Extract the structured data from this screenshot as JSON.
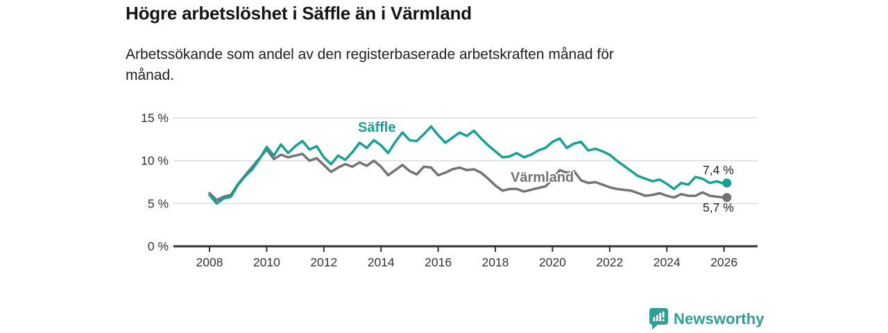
{
  "header": {
    "title": "Högre arbetslöshet i Säffle än i Värmland",
    "subtitle": "Arbetssökande som andel av den registerbaserade arbetskraften månad för månad."
  },
  "chart_data": {
    "type": "line",
    "title": "Högre arbetslöshet i Säffle än i Värmland",
    "xlabel": "",
    "ylabel": "",
    "grid": "horizontal",
    "legend_position": "inline-labels",
    "xlim": [
      2007.5,
      2027.2
    ],
    "ylim": [
      0,
      15.5
    ],
    "x_ticks": [
      2008,
      2010,
      2012,
      2014,
      2016,
      2018,
      2020,
      2022,
      2024,
      2026
    ],
    "y_ticks": [
      {
        "value": 0,
        "label": "0 %"
      },
      {
        "value": 5,
        "label": "5 %"
      },
      {
        "value": 10,
        "label": "10 %"
      },
      {
        "value": 15,
        "label": "15 %"
      }
    ],
    "x": [
      2008.0,
      2008.25,
      2008.5,
      2008.75,
      2009.0,
      2009.25,
      2009.5,
      2009.75,
      2010.0,
      2010.25,
      2010.5,
      2010.75,
      2011.0,
      2011.25,
      2011.5,
      2011.75,
      2012.0,
      2012.25,
      2012.5,
      2012.75,
      2013.0,
      2013.25,
      2013.5,
      2013.75,
      2014.0,
      2014.25,
      2014.5,
      2014.75,
      2015.0,
      2015.25,
      2015.5,
      2015.75,
      2016.0,
      2016.25,
      2016.5,
      2016.75,
      2017.0,
      2017.25,
      2017.5,
      2017.75,
      2018.0,
      2018.25,
      2018.5,
      2018.75,
      2019.0,
      2019.25,
      2019.5,
      2019.75,
      2020.0,
      2020.25,
      2020.5,
      2020.75,
      2021.0,
      2021.25,
      2021.5,
      2021.75,
      2022.0,
      2022.25,
      2022.5,
      2022.75,
      2023.0,
      2023.25,
      2023.5,
      2023.75,
      2024.0,
      2024.25,
      2024.5,
      2024.75,
      2025.0,
      2025.25,
      2025.5,
      2025.75,
      2026.0,
      2026.1
    ],
    "series": [
      {
        "name": "Säffle",
        "color": "#16a194",
        "end_label": "7,4 %",
        "end_value": 7.4,
        "values": [
          6.0,
          5.0,
          5.6,
          5.8,
          7.2,
          8.2,
          9.0,
          10.2,
          11.6,
          10.6,
          11.9,
          10.9,
          11.7,
          12.3,
          11.3,
          11.7,
          10.4,
          9.6,
          10.6,
          10.1,
          11.0,
          12.1,
          11.5,
          12.4,
          11.8,
          10.9,
          12.2,
          13.3,
          12.4,
          12.3,
          13.1,
          14.0,
          13.0,
          12.1,
          12.7,
          13.3,
          12.9,
          13.5,
          12.6,
          11.8,
          11.1,
          10.4,
          10.5,
          10.9,
          10.4,
          10.7,
          11.2,
          11.5,
          12.2,
          12.6,
          11.5,
          12.0,
          12.2,
          11.2,
          11.4,
          11.1,
          10.7,
          10.0,
          9.4,
          8.8,
          8.2,
          7.9,
          7.6,
          7.8,
          7.3,
          6.7,
          7.4,
          7.2,
          8.1,
          7.9,
          7.4,
          7.6,
          7.3,
          7.4
        ]
      },
      {
        "name": "Värmland",
        "color": "#737373",
        "end_label": "5,7 %",
        "end_value": 5.7,
        "values": [
          6.2,
          5.4,
          5.8,
          6.0,
          7.3,
          8.3,
          9.3,
          10.3,
          11.3,
          10.2,
          10.7,
          10.4,
          10.6,
          10.8,
          10.0,
          10.3,
          9.5,
          8.7,
          9.2,
          9.6,
          9.3,
          9.8,
          9.4,
          10.0,
          9.3,
          8.3,
          8.9,
          9.5,
          8.8,
          8.4,
          9.3,
          9.2,
          8.3,
          8.6,
          9.0,
          9.2,
          8.9,
          9.0,
          8.6,
          7.9,
          7.1,
          6.5,
          6.7,
          6.7,
          6.4,
          6.6,
          6.8,
          7.0,
          7.8,
          8.9,
          8.6,
          8.8,
          7.7,
          7.4,
          7.5,
          7.2,
          6.9,
          6.7,
          6.6,
          6.5,
          6.2,
          5.9,
          6.0,
          6.2,
          5.9,
          5.7,
          6.1,
          5.9,
          5.9,
          6.3,
          5.9,
          5.8,
          5.7,
          5.7
        ]
      }
    ],
    "colors": {
      "grid": "#dcdcdc",
      "axis": "#2f2f2f",
      "tick_text": "#333333",
      "annotation_text": "#1d1d1d"
    }
  },
  "footer": {
    "brand": "Newsworthy",
    "brand_color": "#2f9e95"
  }
}
